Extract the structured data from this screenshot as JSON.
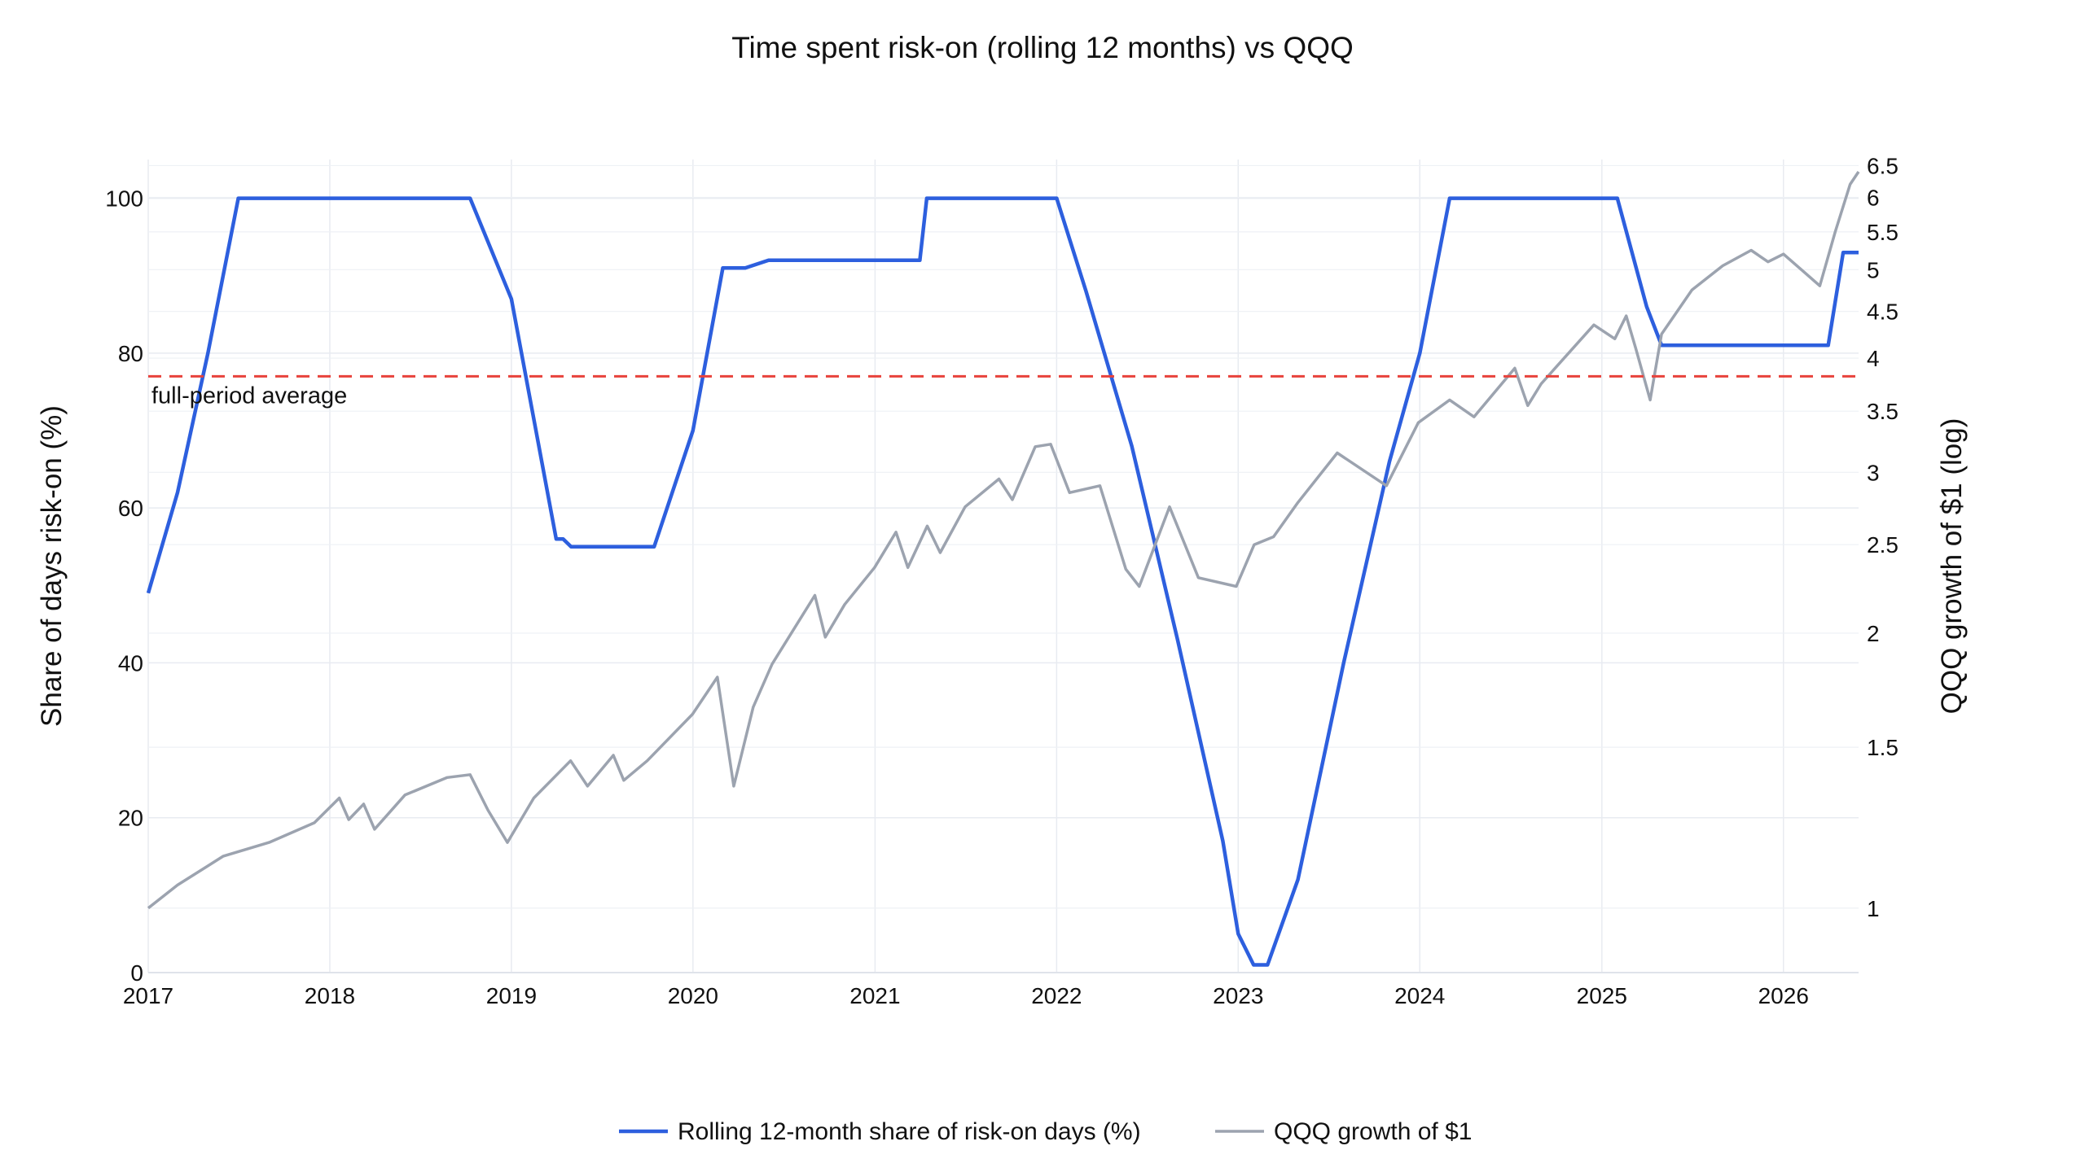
{
  "chart_data": {
    "type": "line",
    "title": "Time spent risk-on (rolling 12 months) vs QQQ",
    "y_left": {
      "label": "Share of days risk-on (%)",
      "range": [
        0,
        105
      ],
      "ticks": [
        0,
        20,
        40,
        60,
        80,
        100
      ]
    },
    "y_right": {
      "label": "QQQ growth of $1 (log)",
      "scale": "log",
      "range": [
        0.85,
        6.6
      ],
      "ticks": [
        1,
        1.5,
        2,
        2.5,
        3,
        3.5,
        4,
        4.5,
        5,
        5.5,
        6,
        6.5
      ]
    },
    "x_axis": {
      "range": [
        "2017-01-01",
        "2026-06-01"
      ],
      "ticks": [
        "2017",
        "2018",
        "2019",
        "2020",
        "2021",
        "2022",
        "2023",
        "2024",
        "2025",
        "2026"
      ]
    },
    "grid": true,
    "legend": {
      "position": "bottom-center"
    },
    "reference_line": {
      "value": 77,
      "label": "full-period average",
      "color": "#e8423b",
      "style": "dashed"
    },
    "series": [
      {
        "name": "Rolling 12-month share of risk-on days (%)",
        "axis": "left",
        "color": "#2d5fde",
        "x": [
          "2017-01-01",
          "2017-03-01",
          "2017-05-01",
          "2017-07-01",
          "2018-03-01",
          "2018-10-01",
          "2018-10-10",
          "2019-01-01",
          "2019-04-01",
          "2019-04-15",
          "2019-05-01",
          "2019-10-01",
          "2019-10-15",
          "2020-01-01",
          "2020-03-01",
          "2020-04-01",
          "2020-04-15",
          "2020-06-01",
          "2021-03-01",
          "2021-04-01",
          "2021-04-15",
          "2021-12-01",
          "2022-01-01",
          "2022-03-01",
          "2022-06-01",
          "2022-09-01",
          "2022-12-01",
          "2023-01-01",
          "2023-02-01",
          "2023-03-01",
          "2023-05-01",
          "2023-08-01",
          "2023-11-01",
          "2024-01-01",
          "2024-03-01",
          "2024-06-01",
          "2025-01-01",
          "2025-02-01",
          "2025-04-01",
          "2025-05-01",
          "2025-06-01",
          "2026-01-01",
          "2026-03-01",
          "2026-04-01",
          "2026-05-01",
          "2026-06-01"
        ],
        "y": [
          49,
          62,
          80,
          100,
          100,
          100,
          100,
          87,
          56,
          56,
          55,
          55,
          55,
          70,
          91,
          91,
          91,
          92,
          92,
          92,
          100,
          100,
          100,
          88,
          68,
          43,
          17,
          5,
          1,
          1,
          12,
          40,
          66,
          80,
          100,
          100,
          100,
          100,
          86,
          81,
          81,
          81,
          81,
          81,
          93,
          93
        ]
      },
      {
        "name": "QQQ growth of $1",
        "axis": "right",
        "color": "#9ca3af",
        "x": [
          "2017-01-01",
          "2017-03-01",
          "2017-06-01",
          "2017-09-01",
          "2017-12-01",
          "2018-01-20",
          "2018-02-08",
          "2018-03-10",
          "2018-04-01",
          "2018-06-01",
          "2018-08-25",
          "2018-10-10",
          "2018-11-15",
          "2018-12-24",
          "2019-02-15",
          "2019-04-30",
          "2019-06-03",
          "2019-07-25",
          "2019-08-15",
          "2019-10-01",
          "2019-12-31",
          "2020-02-19",
          "2020-03-23",
          "2020-05-01",
          "2020-06-08",
          "2020-09-02",
          "2020-09-23",
          "2020-11-01",
          "2020-12-31",
          "2021-02-12",
          "2021-03-08",
          "2021-04-16",
          "2021-05-12",
          "2021-07-01",
          "2021-09-07",
          "2021-10-04",
          "2021-11-19",
          "2021-12-20",
          "2022-01-27",
          "2022-03-29",
          "2022-05-20",
          "2022-06-16",
          "2022-08-16",
          "2022-10-13",
          "2022-12-28",
          "2023-02-02",
          "2023-03-13",
          "2023-05-01",
          "2023-07-19",
          "2023-10-26",
          "2023-12-29",
          "2024-03-01",
          "2024-04-19",
          "2024-07-10",
          "2024-08-05",
          "2024-09-01",
          "2024-12-16",
          "2025-01-27",
          "2025-02-19",
          "2025-03-10",
          "2025-04-08",
          "2025-05-01",
          "2025-07-01",
          "2025-09-01",
          "2025-10-28",
          "2025-12-01",
          "2026-01-01",
          "2026-02-15",
          "2026-03-15",
          "2026-04-15",
          "2026-05-15",
          "2026-06-01"
        ],
        "y": [
          1.0,
          1.06,
          1.14,
          1.18,
          1.24,
          1.32,
          1.25,
          1.3,
          1.22,
          1.33,
          1.39,
          1.4,
          1.28,
          1.18,
          1.32,
          1.45,
          1.36,
          1.47,
          1.38,
          1.45,
          1.63,
          1.79,
          1.36,
          1.66,
          1.85,
          2.2,
          1.98,
          2.15,
          2.36,
          2.58,
          2.36,
          2.62,
          2.45,
          2.75,
          2.95,
          2.8,
          3.2,
          3.22,
          2.85,
          2.9,
          2.35,
          2.25,
          2.75,
          2.3,
          2.25,
          2.5,
          2.55,
          2.78,
          3.15,
          2.9,
          3.4,
          3.6,
          3.45,
          3.9,
          3.55,
          3.75,
          4.35,
          4.2,
          4.45,
          4.1,
          3.6,
          4.25,
          4.75,
          5.05,
          5.25,
          5.1,
          5.2,
          4.95,
          4.8,
          5.5,
          6.2,
          6.4
        ]
      }
    ]
  }
}
